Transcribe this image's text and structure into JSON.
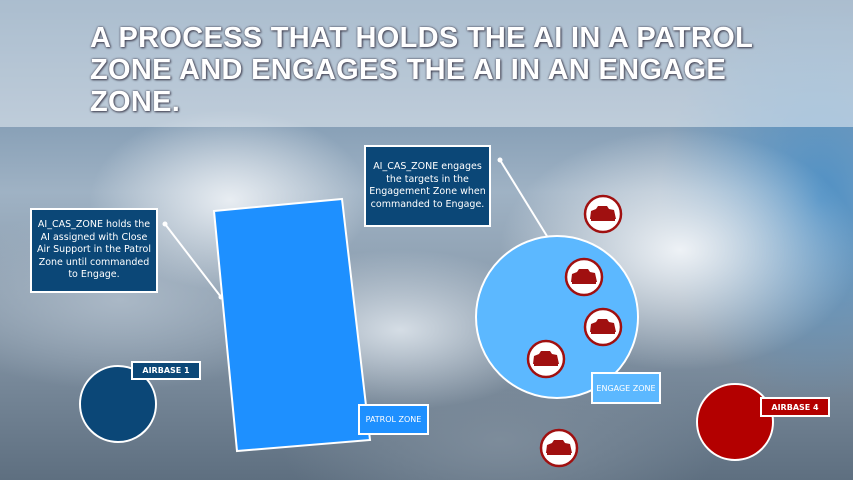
{
  "title": "A PROCESS THAT HOLDS THE AI IN A PATROL ZONE AND ENGAGES THE AI IN AN ENGAGE ZONE.",
  "callouts": {
    "patrol": "AI_CAS_ZONE holds the AI assigned with Close Air Support in the Patrol Zone until commanded to Engage.",
    "engage": "AI_CAS_ZONE engages the targets in the Engagement Zone when commanded to Engage."
  },
  "labels": {
    "airbase1": "AIRBASE 1",
    "patrol_zone": "PATROL ZONE",
    "engage_zone": "ENGAGE ZONE",
    "airbase4": "AIRBASE 4"
  },
  "colors": {
    "blue_side": "#0b4777",
    "patrol_zone": "#1e90ff",
    "engage_zone": "#5cb8ff",
    "red_side": "#b30000"
  },
  "icons": {
    "target": "tank-icon"
  }
}
